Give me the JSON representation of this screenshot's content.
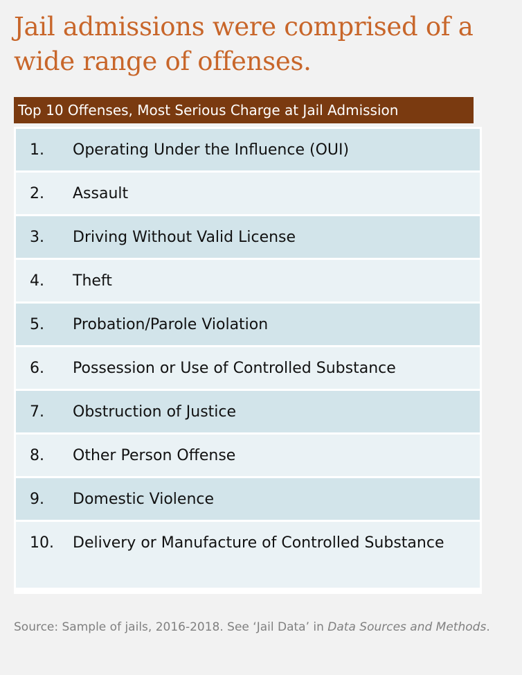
{
  "headline": "Jail admissions were comprised of a wide range of offenses.",
  "table": {
    "title": "Top 10 Offenses, Most Serious Charge at Jail Admission",
    "rows": [
      {
        "rank": "1.",
        "offense": "Operating Under the Influence (OUI)"
      },
      {
        "rank": "2.",
        "offense": "Assault"
      },
      {
        "rank": "3.",
        "offense": "Driving Without Valid License"
      },
      {
        "rank": "4.",
        "offense": "Theft"
      },
      {
        "rank": "5.",
        "offense": "Probation/Parole Violation"
      },
      {
        "rank": "6.",
        "offense": "Possession or Use of Controlled Substance"
      },
      {
        "rank": "7.",
        "offense": "Obstruction of Justice"
      },
      {
        "rank": "8.",
        "offense": "Other Person Offense"
      },
      {
        "rank": "9.",
        "offense": "Domestic Violence"
      },
      {
        "rank": "10.",
        "offense": "Delivery or Manufacture of Controlled Substance"
      }
    ]
  },
  "source": {
    "prefix": "Source: Sample of jails, 2016-2018. See ‘Jail Data’ in ",
    "italic": "Data Sources and Methods",
    "suffix": "."
  },
  "colors": {
    "headline": "#c8662a",
    "title_bar": "#7a3a10",
    "row_dark": "#d2e4ea",
    "row_light": "#eaf2f5",
    "source_text": "#808080"
  }
}
